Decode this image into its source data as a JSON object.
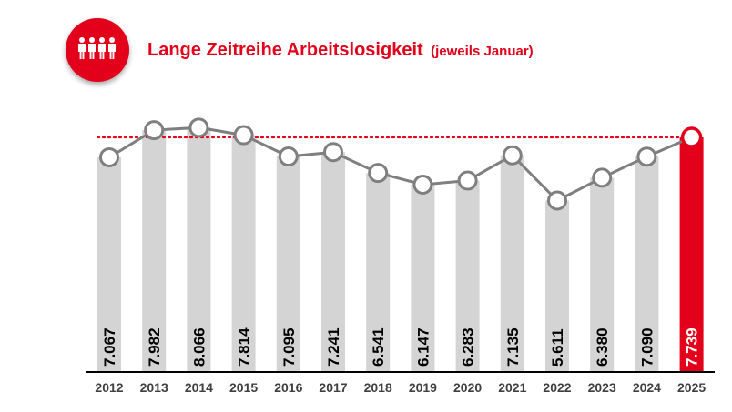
{
  "header": {
    "title": "Lange Zeitreihe Arbeitslosigkeit",
    "subtitle": "(jeweils Januar)",
    "icon": "people-group-icon"
  },
  "colors": {
    "accent": "#e2001a",
    "bar": "#d4d4d4",
    "line": "#7f7f7f",
    "axis": "#000000"
  },
  "chart_data": {
    "type": "bar",
    "overlay": "line",
    "categories": [
      "2012",
      "2013",
      "2014",
      "2015",
      "2016",
      "2017",
      "2018",
      "2019",
      "2020",
      "2021",
      "2022",
      "2023",
      "2024",
      "2025"
    ],
    "values": [
      7067,
      7982,
      8066,
      7814,
      7095,
      7241,
      6541,
      6147,
      6283,
      7135,
      5611,
      6380,
      7090,
      7739
    ],
    "labels": [
      "7.067",
      "7.982",
      "8.066",
      "7.814",
      "7.095",
      "7.241",
      "6.541",
      "6.147",
      "6.283",
      "7.135",
      "5.611",
      "6.380",
      "7.090",
      "7.739"
    ],
    "highlight_index": 13,
    "reference_line": {
      "value": 7739,
      "style": "dotted",
      "color": "#e2001a"
    },
    "title": "Lange Zeitreihe Arbeitslosigkeit",
    "xlabel": "",
    "ylabel": ""
  }
}
